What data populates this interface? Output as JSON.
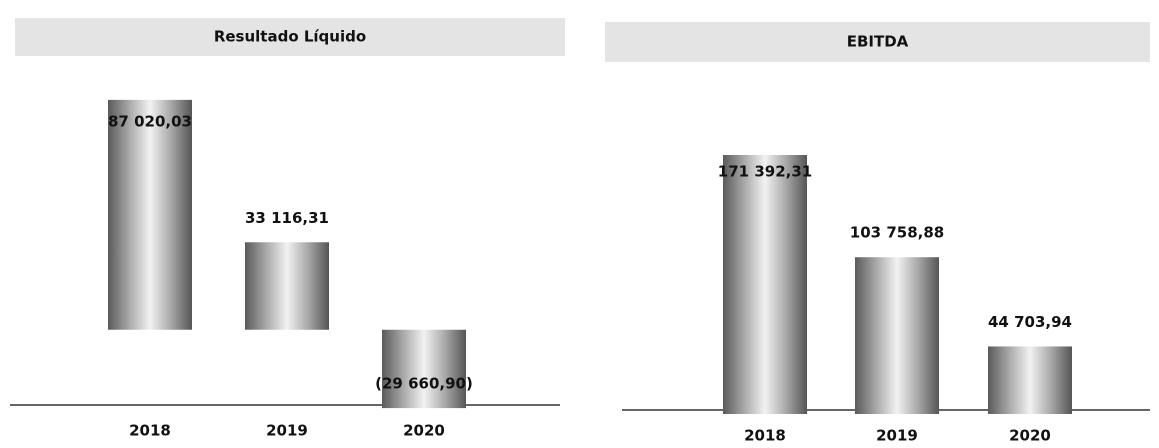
{
  "chart_data": [
    {
      "type": "bar",
      "title": "Resultado Líquido",
      "categories": [
        "2018",
        "2019",
        "2020"
      ],
      "values": [
        87020.03,
        33116.31,
        -29660.9
      ],
      "value_labels": [
        "87 020,03",
        "33 116,31",
        "(29 660,90)"
      ],
      "ylim": [
        -30000,
        90000
      ]
    },
    {
      "type": "bar",
      "title": "EBITDA",
      "categories": [
        "2018",
        "2019",
        "2020"
      ],
      "values": [
        171392.31,
        103758.88,
        44703.94
      ],
      "value_labels": [
        "171 392,31",
        "103 758,88",
        "44 703,94"
      ],
      "ylim": [
        0,
        180000
      ]
    }
  ]
}
